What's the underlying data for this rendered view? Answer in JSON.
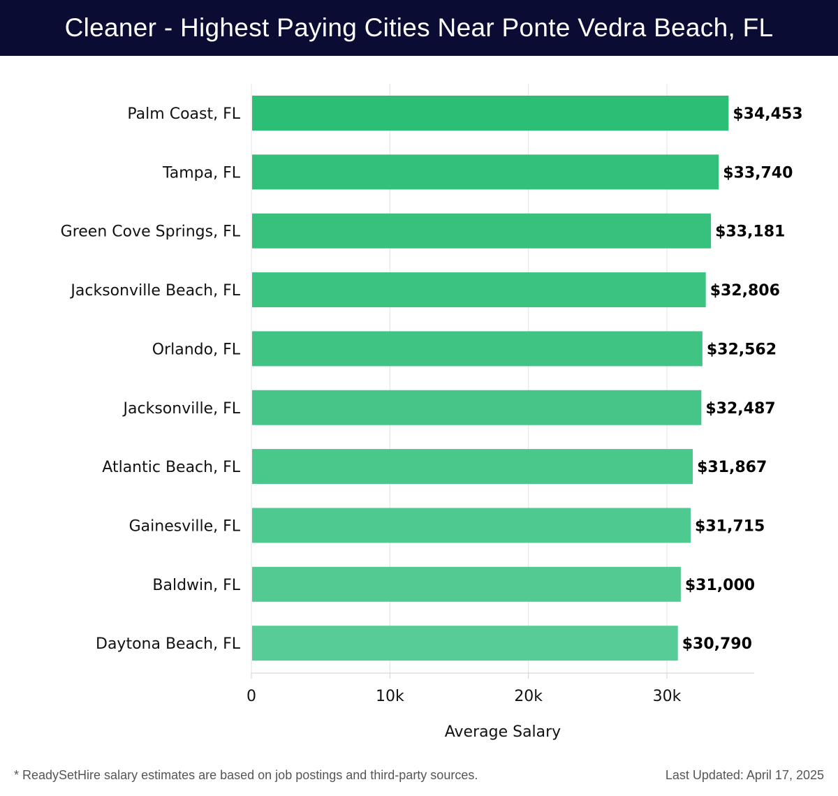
{
  "chart_data": {
    "type": "bar",
    "orientation": "horizontal",
    "title": "Cleaner - Highest Paying Cities Near Ponte Vedra Beach, FL",
    "xlabel": "Average Salary",
    "ylabel": "",
    "categories": [
      "Palm Coast, FL",
      "Tampa, FL",
      "Green Cove Springs, FL",
      "Jacksonville Beach, FL",
      "Orlando, FL",
      "Jacksonville, FL",
      "Atlantic Beach, FL",
      "Gainesville, FL",
      "Baldwin, FL",
      "Daytona Beach, FL"
    ],
    "values": [
      34453,
      33740,
      33181,
      32806,
      32562,
      32487,
      31867,
      31715,
      31000,
      30790
    ],
    "data_labels": [
      "$34,453",
      "$33,740",
      "$33,181",
      "$32,806",
      "$32,562",
      "$32,487",
      "$31,867",
      "$31,715",
      "$31,000",
      "$30,790"
    ],
    "xticks": [
      0,
      10000,
      20000,
      30000
    ],
    "xtick_labels": [
      "0",
      "10k",
      "20k",
      "30k"
    ],
    "xlim": [
      0,
      36300
    ],
    "grid": true,
    "colors": {
      "top": "#2dbe76",
      "bottom": "#58cc96"
    }
  },
  "footer": {
    "note": "* ReadySetHire salary estimates are based on job postings and third-party sources.",
    "updated": "Last Updated: April 17, 2025"
  }
}
